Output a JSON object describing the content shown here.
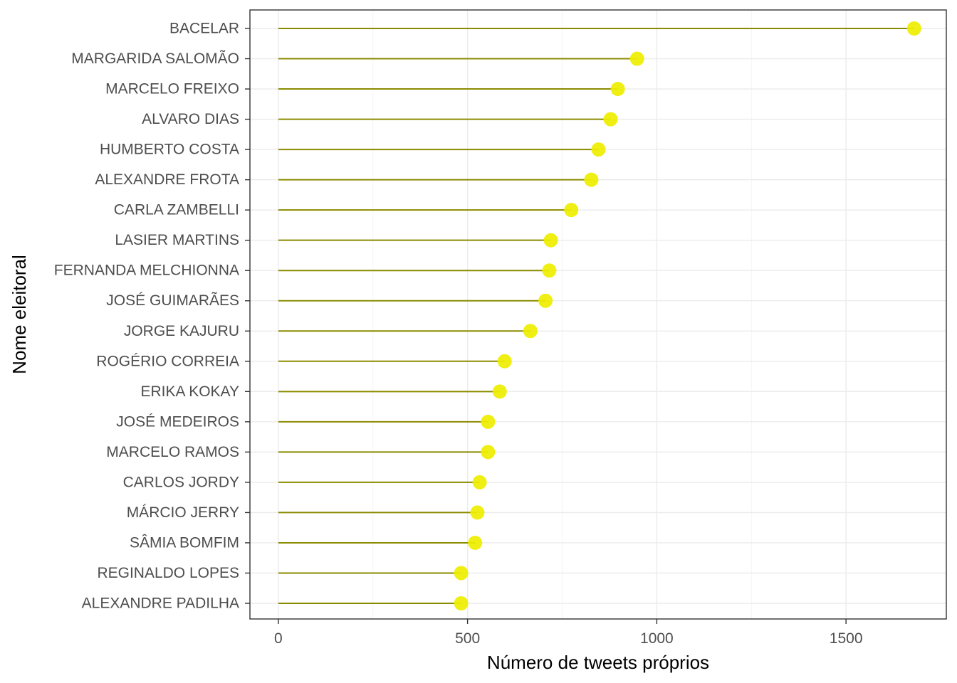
{
  "chart_data": {
    "type": "lollipop",
    "xlabel": "Número de tweets próprios",
    "ylabel": "Nome eleitoral",
    "xlim": [
      -75,
      1765
    ],
    "xticks": [
      0,
      500,
      1000,
      1500
    ],
    "x_minor_ticks": [
      250,
      750,
      1250
    ],
    "grid": true,
    "categories": [
      "BACELAR",
      "MARGARIDA SALOMÃO",
      "MARCELO FREIXO",
      "ALVARO DIAS",
      "HUMBERTO COSTA",
      "ALEXANDRE FROTA",
      "CARLA ZAMBELLI",
      "LASIER MARTINS",
      "FERNANDA MELCHIONNA",
      "JOSÉ GUIMARÃES",
      "JORGE KAJURU",
      "ROGÉRIO CORREIA",
      "ERIKA KOKAY",
      "JOSÉ MEDEIROS",
      "MARCELO RAMOS",
      "CARLOS JORDY",
      "MÁRCIO JERRY",
      "SÂMIA BOMFIM",
      "REGINALDO LOPES",
      "ALEXANDRE PADILHA"
    ],
    "values": [
      1680,
      948,
      897,
      878,
      846,
      827,
      774,
      720,
      716,
      706,
      666,
      598,
      585,
      554,
      554,
      532,
      526,
      520,
      483,
      483
    ],
    "colors": {
      "segment": "#8b8b00",
      "point": "#eeee00"
    }
  }
}
